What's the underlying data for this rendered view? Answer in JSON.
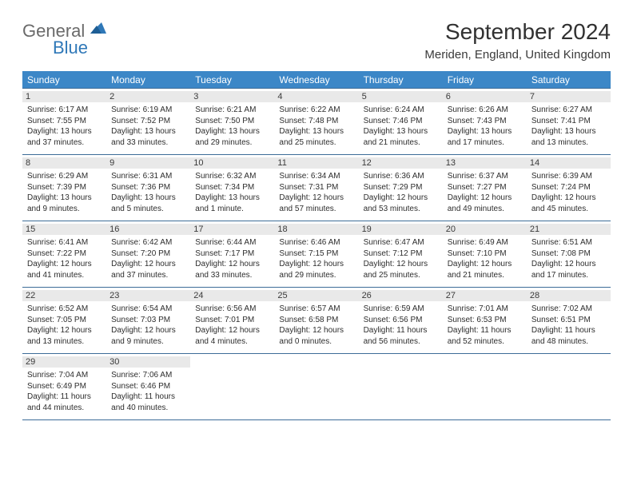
{
  "logo": {
    "general": "General",
    "blue": "Blue"
  },
  "title": "September 2024",
  "location": "Meriden, England, United Kingdom",
  "colors": {
    "header_bg": "#3c87c7",
    "header_text": "#ffffff",
    "daynum_bg": "#e9e9e9",
    "border": "#3c6c98",
    "logo_gray": "#6a6a6a",
    "logo_blue": "#2f78b8",
    "text": "#2d2d2d"
  },
  "day_headers": [
    "Sunday",
    "Monday",
    "Tuesday",
    "Wednesday",
    "Thursday",
    "Friday",
    "Saturday"
  ],
  "days": [
    {
      "num": "1",
      "sunrise": "Sunrise: 6:17 AM",
      "sunset": "Sunset: 7:55 PM",
      "daylight": "Daylight: 13 hours and 37 minutes."
    },
    {
      "num": "2",
      "sunrise": "Sunrise: 6:19 AM",
      "sunset": "Sunset: 7:52 PM",
      "daylight": "Daylight: 13 hours and 33 minutes."
    },
    {
      "num": "3",
      "sunrise": "Sunrise: 6:21 AM",
      "sunset": "Sunset: 7:50 PM",
      "daylight": "Daylight: 13 hours and 29 minutes."
    },
    {
      "num": "4",
      "sunrise": "Sunrise: 6:22 AM",
      "sunset": "Sunset: 7:48 PM",
      "daylight": "Daylight: 13 hours and 25 minutes."
    },
    {
      "num": "5",
      "sunrise": "Sunrise: 6:24 AM",
      "sunset": "Sunset: 7:46 PM",
      "daylight": "Daylight: 13 hours and 21 minutes."
    },
    {
      "num": "6",
      "sunrise": "Sunrise: 6:26 AM",
      "sunset": "Sunset: 7:43 PM",
      "daylight": "Daylight: 13 hours and 17 minutes."
    },
    {
      "num": "7",
      "sunrise": "Sunrise: 6:27 AM",
      "sunset": "Sunset: 7:41 PM",
      "daylight": "Daylight: 13 hours and 13 minutes."
    },
    {
      "num": "8",
      "sunrise": "Sunrise: 6:29 AM",
      "sunset": "Sunset: 7:39 PM",
      "daylight": "Daylight: 13 hours and 9 minutes."
    },
    {
      "num": "9",
      "sunrise": "Sunrise: 6:31 AM",
      "sunset": "Sunset: 7:36 PM",
      "daylight": "Daylight: 13 hours and 5 minutes."
    },
    {
      "num": "10",
      "sunrise": "Sunrise: 6:32 AM",
      "sunset": "Sunset: 7:34 PM",
      "daylight": "Daylight: 13 hours and 1 minute."
    },
    {
      "num": "11",
      "sunrise": "Sunrise: 6:34 AM",
      "sunset": "Sunset: 7:31 PM",
      "daylight": "Daylight: 12 hours and 57 minutes."
    },
    {
      "num": "12",
      "sunrise": "Sunrise: 6:36 AM",
      "sunset": "Sunset: 7:29 PM",
      "daylight": "Daylight: 12 hours and 53 minutes."
    },
    {
      "num": "13",
      "sunrise": "Sunrise: 6:37 AM",
      "sunset": "Sunset: 7:27 PM",
      "daylight": "Daylight: 12 hours and 49 minutes."
    },
    {
      "num": "14",
      "sunrise": "Sunrise: 6:39 AM",
      "sunset": "Sunset: 7:24 PM",
      "daylight": "Daylight: 12 hours and 45 minutes."
    },
    {
      "num": "15",
      "sunrise": "Sunrise: 6:41 AM",
      "sunset": "Sunset: 7:22 PM",
      "daylight": "Daylight: 12 hours and 41 minutes."
    },
    {
      "num": "16",
      "sunrise": "Sunrise: 6:42 AM",
      "sunset": "Sunset: 7:20 PM",
      "daylight": "Daylight: 12 hours and 37 minutes."
    },
    {
      "num": "17",
      "sunrise": "Sunrise: 6:44 AM",
      "sunset": "Sunset: 7:17 PM",
      "daylight": "Daylight: 12 hours and 33 minutes."
    },
    {
      "num": "18",
      "sunrise": "Sunrise: 6:46 AM",
      "sunset": "Sunset: 7:15 PM",
      "daylight": "Daylight: 12 hours and 29 minutes."
    },
    {
      "num": "19",
      "sunrise": "Sunrise: 6:47 AM",
      "sunset": "Sunset: 7:12 PM",
      "daylight": "Daylight: 12 hours and 25 minutes."
    },
    {
      "num": "20",
      "sunrise": "Sunrise: 6:49 AM",
      "sunset": "Sunset: 7:10 PM",
      "daylight": "Daylight: 12 hours and 21 minutes."
    },
    {
      "num": "21",
      "sunrise": "Sunrise: 6:51 AM",
      "sunset": "Sunset: 7:08 PM",
      "daylight": "Daylight: 12 hours and 17 minutes."
    },
    {
      "num": "22",
      "sunrise": "Sunrise: 6:52 AM",
      "sunset": "Sunset: 7:05 PM",
      "daylight": "Daylight: 12 hours and 13 minutes."
    },
    {
      "num": "23",
      "sunrise": "Sunrise: 6:54 AM",
      "sunset": "Sunset: 7:03 PM",
      "daylight": "Daylight: 12 hours and 9 minutes."
    },
    {
      "num": "24",
      "sunrise": "Sunrise: 6:56 AM",
      "sunset": "Sunset: 7:01 PM",
      "daylight": "Daylight: 12 hours and 4 minutes."
    },
    {
      "num": "25",
      "sunrise": "Sunrise: 6:57 AM",
      "sunset": "Sunset: 6:58 PM",
      "daylight": "Daylight: 12 hours and 0 minutes."
    },
    {
      "num": "26",
      "sunrise": "Sunrise: 6:59 AM",
      "sunset": "Sunset: 6:56 PM",
      "daylight": "Daylight: 11 hours and 56 minutes."
    },
    {
      "num": "27",
      "sunrise": "Sunrise: 7:01 AM",
      "sunset": "Sunset: 6:53 PM",
      "daylight": "Daylight: 11 hours and 52 minutes."
    },
    {
      "num": "28",
      "sunrise": "Sunrise: 7:02 AM",
      "sunset": "Sunset: 6:51 PM",
      "daylight": "Daylight: 11 hours and 48 minutes."
    },
    {
      "num": "29",
      "sunrise": "Sunrise: 7:04 AM",
      "sunset": "Sunset: 6:49 PM",
      "daylight": "Daylight: 11 hours and 44 minutes."
    },
    {
      "num": "30",
      "sunrise": "Sunrise: 7:06 AM",
      "sunset": "Sunset: 6:46 PM",
      "daylight": "Daylight: 11 hours and 40 minutes."
    }
  ]
}
